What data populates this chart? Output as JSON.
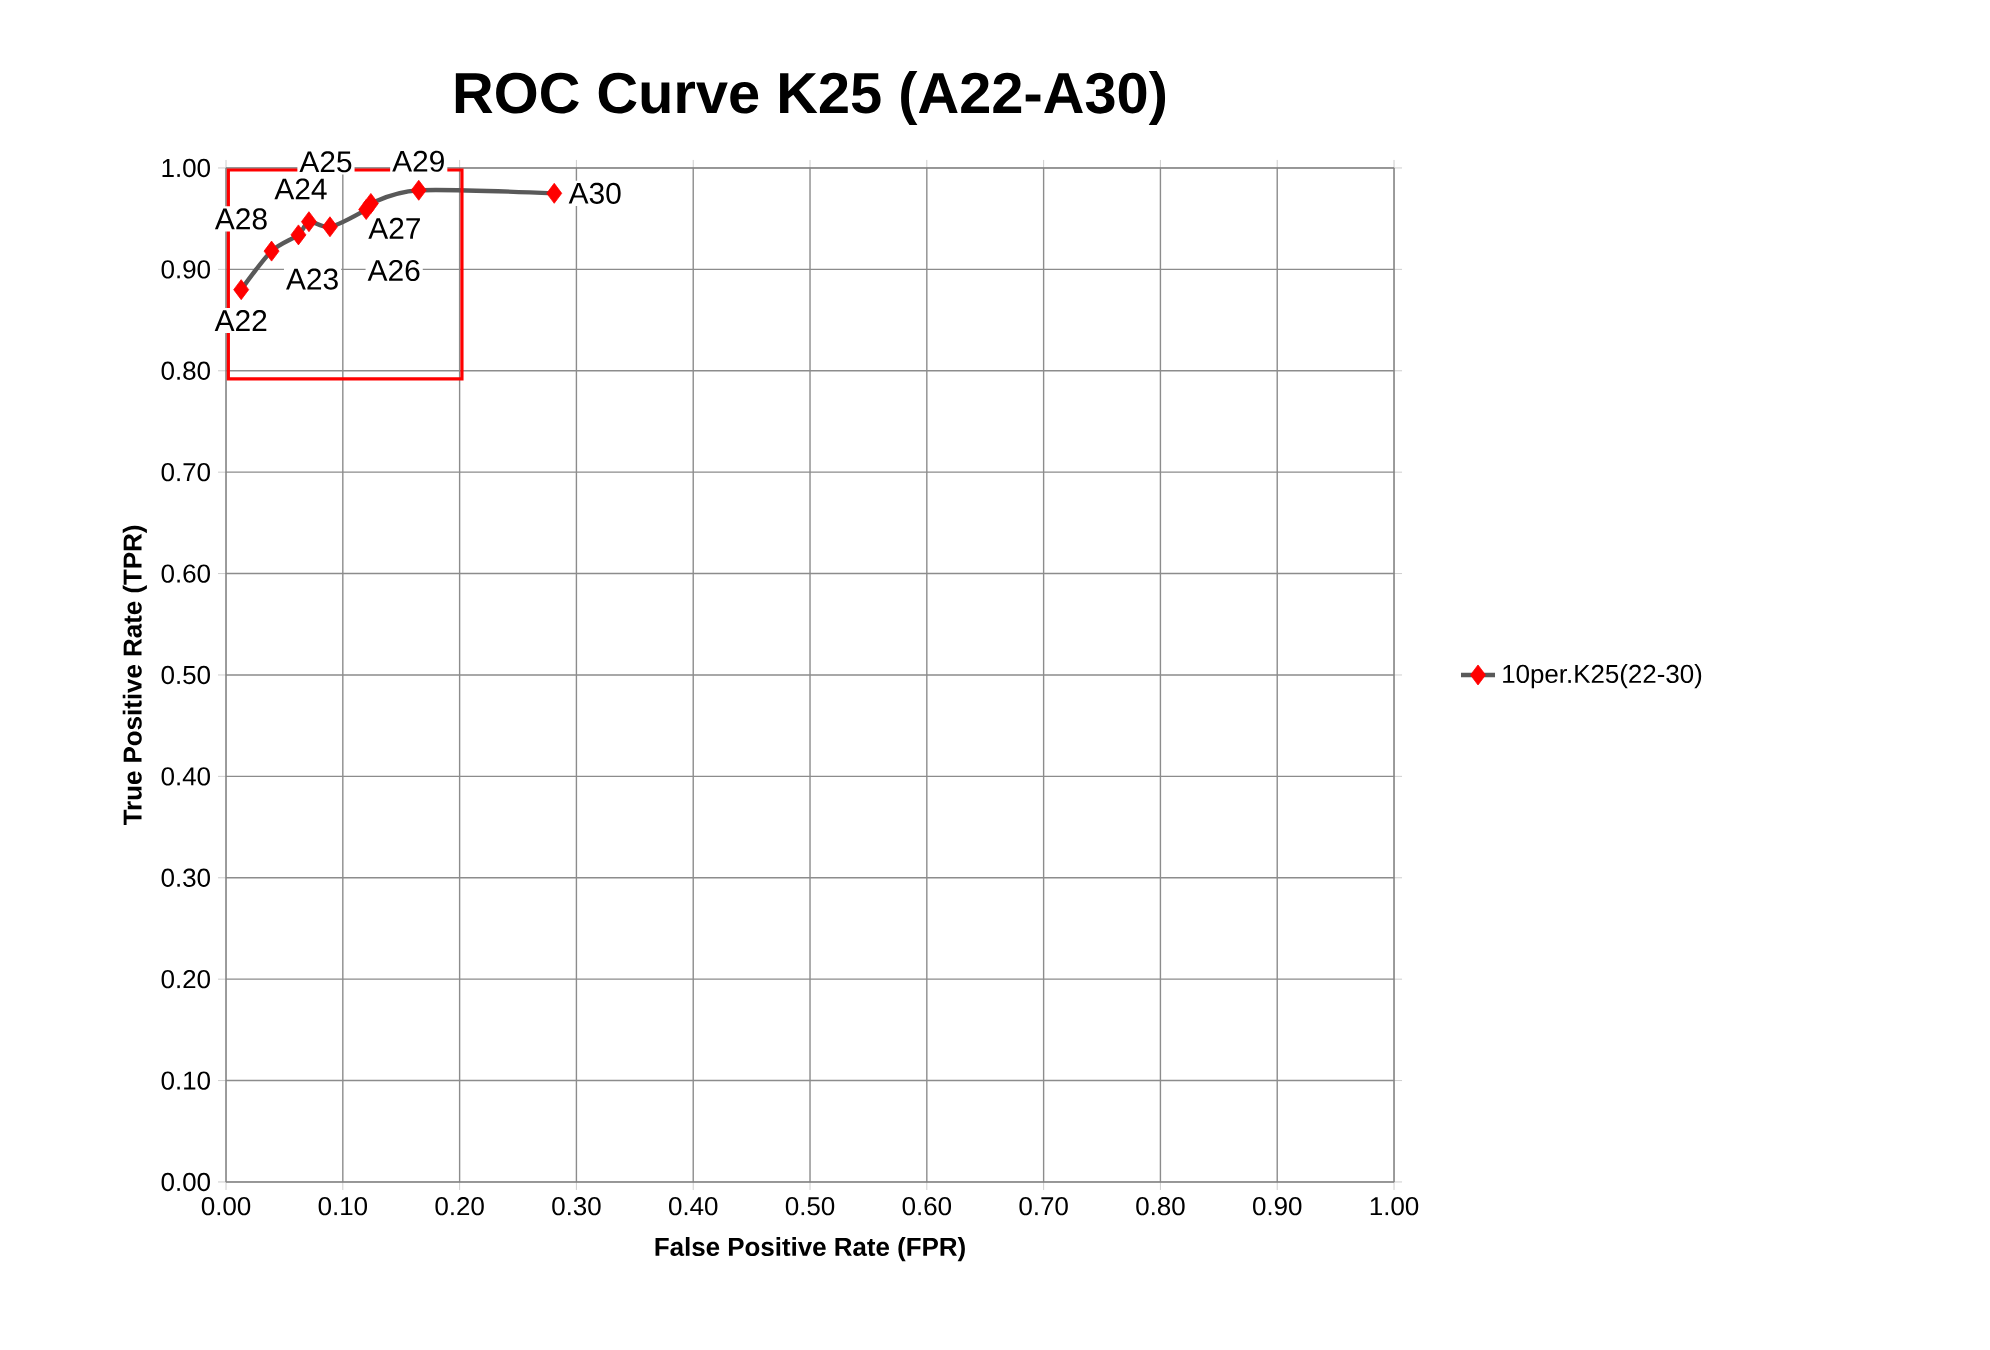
{
  "chart_data": {
    "type": "line",
    "title": "ROC Curve K25 (A22-A30)",
    "xlabel": "False Positive Rate (FPR)",
    "ylabel": "True Positive Rate (TPR)",
    "series": [
      {
        "name": "10per.K25(22-30)",
        "color": "#ff0000",
        "x": [
          0.013,
          0.039,
          0.062,
          0.071,
          0.089,
          0.12,
          0.124,
          0.165,
          0.281
        ],
        "values": [
          0.88,
          0.918,
          0.934,
          0.947,
          0.942,
          0.959,
          0.965,
          0.978,
          0.975
        ]
      }
    ],
    "xlim": [
      0,
      1
    ],
    "ylim": [
      0,
      1
    ],
    "xticks": [
      {
        "value": 0,
        "label": "0.00"
      },
      {
        "value": 0.1,
        "label": "0.10"
      },
      {
        "value": 0.2,
        "label": "0.20"
      },
      {
        "value": 0.3,
        "label": "0.30"
      },
      {
        "value": 0.4,
        "label": "0.40"
      },
      {
        "value": 0.5,
        "label": "0.50"
      },
      {
        "value": 0.6,
        "label": "0.60"
      },
      {
        "value": 0.7,
        "label": "0.70"
      },
      {
        "value": 0.8,
        "label": "0.80"
      },
      {
        "value": 0.9,
        "label": "0.90"
      },
      {
        "value": 1,
        "label": "1.00"
      }
    ],
    "yticks": [
      {
        "value": 0,
        "label": "0.00"
      },
      {
        "value": 0.1,
        "label": "0.10"
      },
      {
        "value": 0.2,
        "label": "0.20"
      },
      {
        "value": 0.3,
        "label": "0.30"
      },
      {
        "value": 0.4,
        "label": "0.40"
      },
      {
        "value": 0.5,
        "label": "0.50"
      },
      {
        "value": 0.6,
        "label": "0.60"
      },
      {
        "value": 0.7,
        "label": "0.70"
      },
      {
        "value": 0.8,
        "label": "0.80"
      },
      {
        "value": 0.9,
        "label": "0.90"
      },
      {
        "value": 1,
        "label": "1.00"
      }
    ],
    "annotations": [
      {
        "text": "A22",
        "x": 0.013,
        "y": 0.88
      },
      {
        "text": "A23",
        "x": 0.039,
        "y": 0.918
      },
      {
        "text": "A28",
        "x": 0.062,
        "y": 0.934
      },
      {
        "text": "A24",
        "x": 0.071,
        "y": 0.947
      },
      {
        "text": "A25",
        "x": 0.089,
        "y": 0.942
      },
      {
        "text": "A26",
        "x": 0.12,
        "y": 0.959
      },
      {
        "text": "A27",
        "x": 0.124,
        "y": 0.965
      },
      {
        "text": "A29",
        "x": 0.165,
        "y": 0.978
      },
      {
        "text": "A30",
        "x": 0.281,
        "y": 0.975
      }
    ],
    "grid": true,
    "legend": "right",
    "marker": "diamond",
    "line_style": "solid"
  }
}
